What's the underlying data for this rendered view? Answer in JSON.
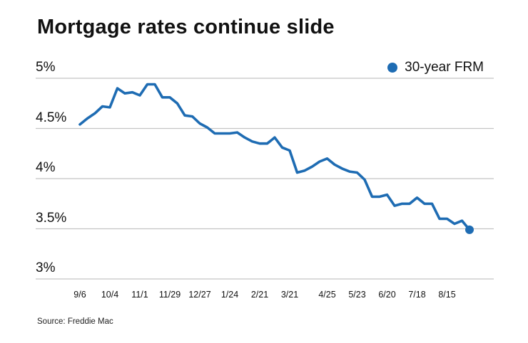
{
  "chart_data": {
    "type": "line",
    "title": "Mortgage rates continue slide",
    "source": "Source: Freddie Mac",
    "legend": {
      "label": "30-year FRM",
      "position": "top-right"
    },
    "line_color": "#1e6cb3",
    "grid_color": "#c4c4c4",
    "text_color": "#111111",
    "grid": true,
    "ylim": [
      3,
      5
    ],
    "y_ticks": [
      {
        "label": "5%",
        "value": 5
      },
      {
        "label": "4.5%",
        "value": 4.5
      },
      {
        "label": "4%",
        "value": 4
      },
      {
        "label": "3.5%",
        "value": 3.5
      },
      {
        "label": "3%",
        "value": 3
      }
    ],
    "x_ticks": [
      {
        "label": "9/6",
        "index": 0
      },
      {
        "label": "10/4",
        "index": 4
      },
      {
        "label": "11/1",
        "index": 8
      },
      {
        "label": "11/29",
        "index": 12
      },
      {
        "label": "12/27",
        "index": 16
      },
      {
        "label": "1/24",
        "index": 20
      },
      {
        "label": "2/21",
        "index": 24
      },
      {
        "label": "3/21",
        "index": 28
      },
      {
        "label": "4/25",
        "index": 33
      },
      {
        "label": "5/23",
        "index": 37
      },
      {
        "label": "6/20",
        "index": 41
      },
      {
        "label": "7/18",
        "index": 45
      },
      {
        "label": "8/15",
        "index": 49
      }
    ],
    "series": [
      {
        "name": "30-year FRM",
        "values": [
          4.54,
          4.6,
          4.65,
          4.72,
          4.71,
          4.9,
          4.85,
          4.86,
          4.83,
          4.94,
          4.94,
          4.81,
          4.81,
          4.75,
          4.63,
          4.62,
          4.55,
          4.51,
          4.45,
          4.45,
          4.45,
          4.46,
          4.41,
          4.37,
          4.35,
          4.35,
          4.41,
          4.31,
          4.28,
          4.06,
          4.08,
          4.12,
          4.17,
          4.2,
          4.14,
          4.1,
          4.07,
          4.06,
          3.99,
          3.82,
          3.82,
          3.84,
          3.73,
          3.75,
          3.75,
          3.81,
          3.75,
          3.75,
          3.6,
          3.6,
          3.55,
          3.58,
          3.49
        ]
      }
    ]
  }
}
